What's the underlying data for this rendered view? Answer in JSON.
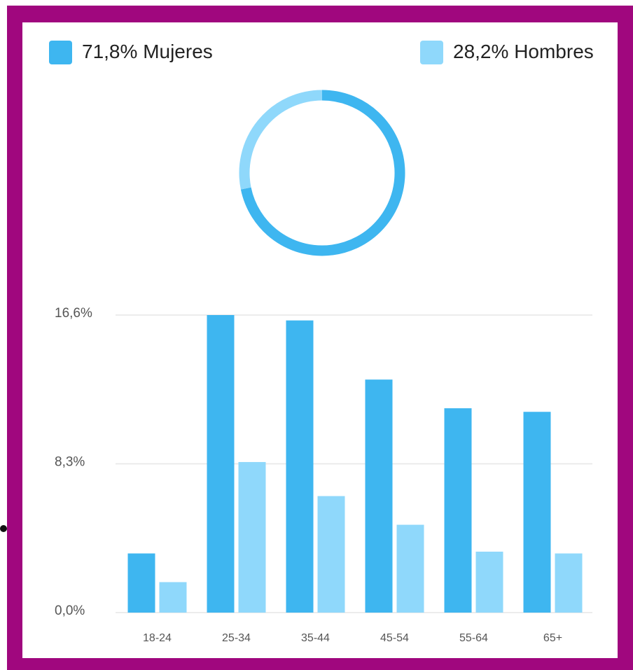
{
  "chart_data": [
    {
      "type": "donut",
      "categories": [
        "Mujeres",
        "Hombres"
      ],
      "values": [
        71.8,
        28.2
      ],
      "value_labels": [
        "71,8%",
        "28,2%"
      ],
      "colors": [
        "#3eb6f0",
        "#8fd8fb"
      ]
    },
    {
      "type": "bar",
      "categories": [
        "18-24",
        "25-34",
        "35-44",
        "45-54",
        "55-64",
        "65+"
      ],
      "series": [
        {
          "color": "#3eb6f0",
          "values": [
            3.3,
            16.6,
            16.3,
            13.0,
            11.4,
            11.2
          ]
        },
        {
          "color": "#8fd8fb",
          "values": [
            1.7,
            8.4,
            6.5,
            4.9,
            3.4,
            3.3
          ]
        }
      ],
      "ylim": [
        0,
        16.6
      ],
      "yticks": [
        {
          "value": 0,
          "label": "0,0%"
        },
        {
          "value": 8.3,
          "label": "8,3%"
        },
        {
          "value": 16.6,
          "label": "16,6%"
        }
      ],
      "grid": true
    }
  ]
}
